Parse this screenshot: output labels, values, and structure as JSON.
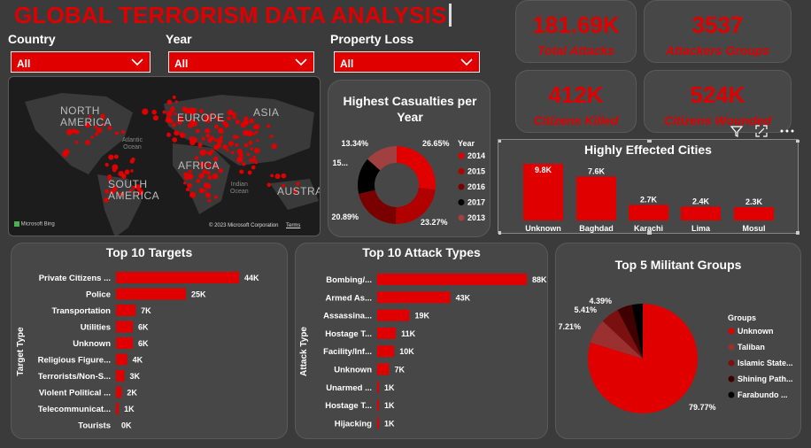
{
  "header": {
    "title": "GLOBAL TERRORISM DATA ANALYSIS"
  },
  "filters": {
    "country": {
      "label": "Country",
      "value": "All"
    },
    "year": {
      "label": "Year",
      "value": "All"
    },
    "property_loss": {
      "label": "Property Loss",
      "value": "All"
    }
  },
  "kpis": [
    {
      "value": "181.69K",
      "label": "Total Attacks"
    },
    {
      "value": "3537",
      "label": "Attackers Groups"
    },
    {
      "value": "412K",
      "label": "Citizens Killed"
    },
    {
      "value": "524K",
      "label": "Citizens Wounded"
    }
  ],
  "map": {
    "labels": [
      "NORTH\nAMERICA",
      "EUROPE",
      "ASIA",
      "AFRICA",
      "SOUTH\nAMERICA",
      "AUSTRA"
    ],
    "oceans": [
      "Atlantic\nOcean",
      "Indian\nOcean"
    ],
    "bing": "Microsoft Bing",
    "copyright": "© 2023 Microsoft Corporation",
    "terms": "Terms"
  },
  "colors": {
    "accent": "#e00000",
    "background": "#3b3b3b",
    "card": "#474747"
  },
  "chart_data": [
    {
      "id": "casualties",
      "type": "pie",
      "title": "Highest Casualties per Year",
      "legend_title": "Year",
      "legend_position": "right",
      "labels": [
        "2014",
        "2015",
        "2016",
        "2017",
        "2013"
      ],
      "values": [
        26.65,
        23.27,
        20.89,
        15.0,
        13.34
      ],
      "label_text": [
        "26.65%",
        "23.27%",
        "20.89%",
        "15...",
        "13.34%"
      ],
      "colors": [
        "#e00000",
        "#b00000",
        "#7a0000",
        "#000000",
        "#a04040"
      ]
    },
    {
      "id": "cities",
      "type": "bar",
      "title": "Highly Effected Cities",
      "categories": [
        "Unknown",
        "Baghdad",
        "Karachi",
        "Lima",
        "Mosul"
      ],
      "values": [
        9.8,
        7.6,
        2.7,
        2.4,
        2.3
      ],
      "value_labels": [
        "9.8K",
        "7.6K",
        "2.7K",
        "2.4K",
        "2.3K"
      ]
    },
    {
      "id": "targets",
      "type": "bar",
      "orientation": "horizontal",
      "title": "Top 10 Targets",
      "ylabel": "Target Type",
      "categories": [
        "Private Citizens ...",
        "Police",
        "Transportation",
        "Utilities",
        "Unknown",
        "Religious Figure...",
        "Terrorists/Non-S...",
        "Violent Political ...",
        "Telecommunicat...",
        "Tourists"
      ],
      "values": [
        44,
        25,
        7,
        6,
        6,
        4,
        3,
        2,
        1,
        0
      ],
      "value_labels": [
        "44K",
        "25K",
        "7K",
        "6K",
        "6K",
        "4K",
        "3K",
        "2K",
        "1K",
        "0K"
      ]
    },
    {
      "id": "attack_types",
      "type": "bar",
      "orientation": "horizontal",
      "title": "Top 10 Attack Types",
      "ylabel": "Attack Type",
      "categories": [
        "Bombing/...",
        "Armed As...",
        "Assassina...",
        "Hostage T...",
        "Facility/Inf...",
        "Unknown",
        "Unarmed ...",
        "Hostage T...",
        "Hijacking"
      ],
      "values": [
        88,
        43,
        19,
        11,
        10,
        7,
        1,
        1,
        1
      ],
      "value_labels": [
        "88K",
        "43K",
        "19K",
        "11K",
        "10K",
        "7K",
        "1K",
        "1K",
        "1K"
      ]
    },
    {
      "id": "militant_groups",
      "type": "pie",
      "title": "Top 5 Militant Groups",
      "legend_title": "Groups",
      "legend_position": "right",
      "labels": [
        "Unknown",
        "Taliban",
        "Islamic State...",
        "Shining Path...",
        "Farabundo ..."
      ],
      "values": [
        79.77,
        7.21,
        5.41,
        4.39,
        3.22
      ],
      "label_text": [
        "79.77%",
        "7.21%",
        "5.41%",
        "4.39%",
        ""
      ],
      "colors": [
        "#e00000",
        "#9a3030",
        "#7a1010",
        "#400000",
        "#000000"
      ]
    }
  ]
}
